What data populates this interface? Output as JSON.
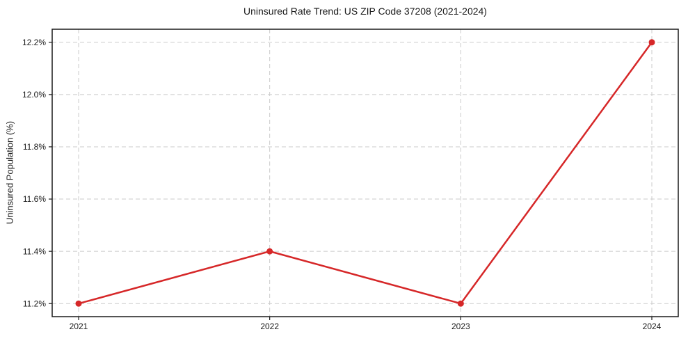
{
  "page": {
    "background": "#ffffff"
  },
  "chart_data": {
    "type": "line",
    "title": "Uninsured Rate Trend: US ZIP Code 37208 (2021-2024)",
    "xlabel": "",
    "ylabel": "Uninsured Population (%)",
    "categories": [
      "2021",
      "2022",
      "2023",
      "2024"
    ],
    "series": [
      {
        "values": [
          11.2,
          11.4,
          11.2,
          12.2
        ],
        "color": "#d62728",
        "marker": "circle",
        "line_width": 2.5,
        "marker_radius": 4.5
      }
    ],
    "yticks": [
      11.2,
      11.4,
      11.6,
      11.8,
      12.0,
      12.2
    ],
    "ytick_labels": [
      "11.2%",
      "11.4%",
      "11.6%",
      "11.8%",
      "12.0%",
      "12.2%"
    ],
    "ylim": [
      11.15,
      12.25
    ],
    "grid": {
      "visible": true,
      "style": "dashed",
      "color": "#cbcbcb"
    },
    "legend": {
      "visible": false
    },
    "axis_color": "#1a1a1a",
    "text_color": "#1a1a1a"
  }
}
